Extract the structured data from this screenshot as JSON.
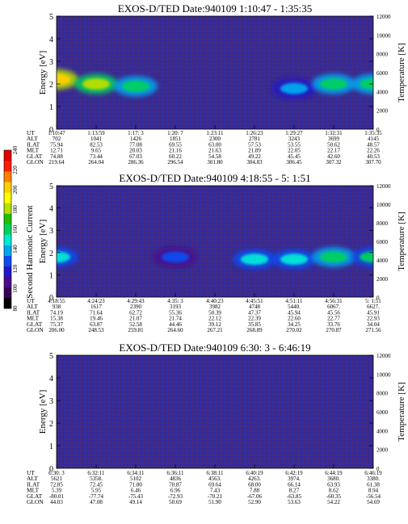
{
  "figure": {
    "colorbar": {
      "label": "Second Harmonic Current",
      "ticks": [
        "80",
        "100",
        "120",
        "140",
        "160",
        "180",
        "200",
        "220",
        "240"
      ],
      "colors": [
        "#000000",
        "#3a0058",
        "#4b0a8c",
        "#2418c8",
        "#0f4cf0",
        "#00a8f0",
        "#00e8d8",
        "#00d060",
        "#20c000",
        "#b8e000",
        "#ffff00",
        "#ffd000",
        "#ff8000",
        "#ff2000",
        "#e00000"
      ]
    },
    "rows": [
      "UT",
      "ALT",
      "ILAT",
      "MLT",
      "GLAT",
      "GLON"
    ],
    "yaxis": {
      "label": "Energy [eV]",
      "ticks": [
        "0",
        "1",
        "2",
        "3",
        "4",
        "5"
      ]
    },
    "y2axis": {
      "label": "Temperature [K]",
      "ticks": [
        "0",
        "2000",
        "4000",
        "6000",
        "8000",
        "10000",
        "12000"
      ]
    }
  },
  "chart_data": [
    {
      "type": "heatmap",
      "title": "EXOS-D/TED   Date:940109  1:10:47 - 1:35:35",
      "ylabel": "Energy [eV]",
      "ylim": [
        0,
        5
      ],
      "y2label": "Temperature [K]",
      "y2lim": [
        0,
        12000
      ],
      "columns": [
        [
          "1:10:47",
          "702",
          "75.94",
          "12.71",
          "74.88",
          "219.64"
        ],
        [
          "1:13:59",
          "1041",
          "82.53",
          "9.65",
          "73.44",
          "264.04"
        ],
        [
          "1:17: 3",
          "1426",
          "77.08",
          "20.03",
          "67.03",
          "286.36"
        ],
        [
          "1:20: 7",
          "1851",
          "69.55",
          "21.16",
          "60.22",
          "296.54"
        ],
        [
          "1:23:11",
          "2300",
          "63.00",
          "21.63",
          "54.58",
          "301.80"
        ],
        [
          "1:26:23",
          "2781",
          "57.53",
          "21.89",
          "49.22",
          "304.83"
        ],
        [
          "1:29:27",
          "3243",
          "53.55",
          "22.05",
          "45.45",
          "306.45"
        ],
        [
          "1:32:31",
          "3699",
          "50.62",
          "22.17",
          "42.60",
          "307.32"
        ],
        [
          "1:35:35",
          "4145",
          "48.57",
          "22.26",
          "40.53",
          "307.70"
        ]
      ],
      "features": [
        {
          "time": "1:10:47",
          "energy": 2.2,
          "intensity": 210
        },
        {
          "time": "1:13:59",
          "energy": 2.0,
          "intensity": 180
        },
        {
          "time": "1:17: 3",
          "energy": 1.9,
          "intensity": 160
        },
        {
          "time": "1:29:27",
          "energy": 1.8,
          "intensity": 140
        },
        {
          "time": "1:32:31",
          "energy": 2.0,
          "intensity": 165
        },
        {
          "time": "1:35:35",
          "energy": 2.0,
          "intensity": 165
        }
      ]
    },
    {
      "type": "heatmap",
      "title": "EXOS-D/TED   Date:940109  4:18:55 - 5: 1:51",
      "ylabel": "Energy [eV]",
      "ylim": [
        0,
        5
      ],
      "y2label": "Temperature [K]",
      "y2lim": [
        0,
        12000
      ],
      "columns": [
        [
          "4:18:55",
          "938",
          "74.19",
          "15.38",
          "75.37",
          "206.00"
        ],
        [
          "4:24:23",
          "1617",
          "71.64",
          "19.46",
          "63.87",
          "248.53"
        ],
        [
          "4:29:43",
          "2390",
          "62.72",
          "21.07",
          "52.58",
          "259.81"
        ],
        [
          "4:35: 3",
          "3193",
          "55.36",
          "21.74",
          "44.46",
          "264.60"
        ],
        [
          "4:40:23",
          "3982",
          "50.39",
          "22.12",
          "39.12",
          "267.21"
        ],
        [
          "4:45:51",
          "4748",
          "47.37",
          "22.39",
          "35.85",
          "268.89"
        ],
        [
          "4:51:11",
          "5440.",
          "45.94",
          "22.60",
          "34.25",
          "270.02"
        ],
        [
          "4:56:31",
          "6067.",
          "45.56",
          "22.77",
          "33.76",
          "270.87"
        ],
        [
          "5: 1:51",
          "6627.",
          "45.91",
          "22.93",
          "34.04",
          "271.56"
        ]
      ],
      "features": [
        {
          "time": "4:18:55",
          "energy": 1.8,
          "intensity": 150
        },
        {
          "time": "4:35: 3",
          "energy": 1.8,
          "intensity": 130
        },
        {
          "time": "4:45:51",
          "energy": 1.7,
          "intensity": 145
        },
        {
          "time": "4:51:11",
          "energy": 1.7,
          "intensity": 150
        },
        {
          "time": "4:56:31",
          "energy": 1.8,
          "intensity": 160
        },
        {
          "time": "5: 1:51",
          "energy": 1.8,
          "intensity": 155
        }
      ]
    },
    {
      "type": "heatmap",
      "title": "EXOS-D/TED   Date:940109  6:30: 3 - 6:46:19",
      "ylabel": "Energy [eV]",
      "ylim": [
        0,
        5
      ],
      "y2label": "Temperature [K]",
      "y2lim": [
        0,
        12000
      ],
      "columns": [
        [
          "6:30: 3",
          "5621",
          "72.85",
          "5.39",
          "-80.01",
          "44.03"
        ],
        [
          "6:32:11",
          "5358.",
          "72.45",
          "5.95",
          "-77.74",
          "47.08"
        ],
        [
          "6:34:11",
          "5102",
          "71.80",
          "6.46",
          "-75.43",
          "49.14"
        ],
        [
          "6:36:11",
          "4836",
          "70.87",
          "6.96",
          "-72.93",
          "50.69"
        ],
        [
          "6:38:11",
          "4563.",
          "69.64",
          "7.43",
          "-70.21",
          "51.90"
        ],
        [
          "6:40:19",
          "4263.",
          "68.00",
          "7.88",
          "-67.06",
          "52.90"
        ],
        [
          "6:42:19",
          "3974.",
          "66.14",
          "8.27",
          "-63.85",
          "53.63"
        ],
        [
          "6:44:19",
          "3680.",
          "63.93",
          "8.62",
          "-60.35",
          "54.22"
        ],
        [
          "6:46:19",
          "3380.",
          "61.38",
          "8.94",
          "-56.54",
          "54.69"
        ]
      ],
      "features": []
    }
  ]
}
